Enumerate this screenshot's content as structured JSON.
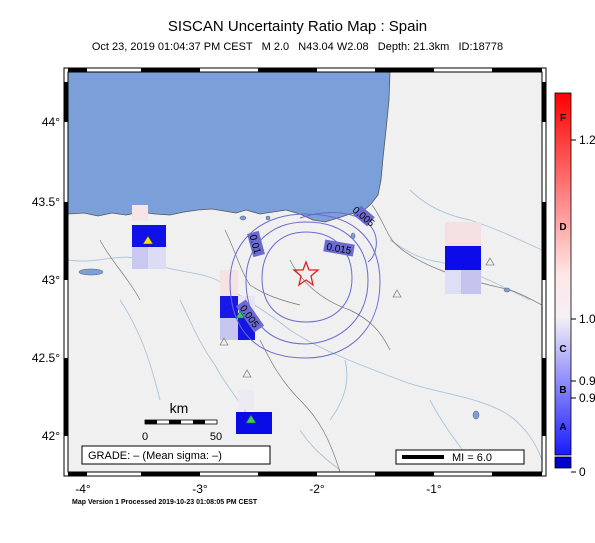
{
  "header": {
    "title": "SISCAN Uncertainty Ratio Map : Spain",
    "subtitle": "Oct 23, 2019 01:04:37 PM CEST   M 2.0   N43.04 W2.08   Depth: 21.3km   ID:18778"
  },
  "map": {
    "lon_ticks": [
      "-4°",
      "-3°",
      "-2°",
      "-1°"
    ],
    "lat_ticks": [
      "44°",
      "43.5°",
      "43°",
      "42.5°",
      "42°"
    ],
    "contour_labels": [
      "0.01",
      "0.015",
      "0.005",
      "0.005"
    ],
    "scale_bar": {
      "unit": "km",
      "labels": [
        "0",
        "50"
      ]
    },
    "grade_label": "GRADE: – (Mean sigma: –)",
    "mi_legend": "MI = 6.0",
    "epicenter": {
      "lat": 43.04,
      "lon": -2.08,
      "symbol": "star-icon"
    },
    "colors": {
      "sea": "#7b9fd8",
      "land": "#f0f0f0",
      "blue_cell": "#0000e0",
      "epicenter": "#e02020"
    }
  },
  "colorbar": {
    "grade_letters": [
      "F",
      "D",
      "C",
      "B",
      "A"
    ],
    "value_labels": [
      "1.2",
      "1.0",
      "0.9",
      "0.9",
      "0"
    ]
  },
  "footer": {
    "text": "Map Version 1 Processed 2019-10-23 01:08:05 PM CEST"
  }
}
